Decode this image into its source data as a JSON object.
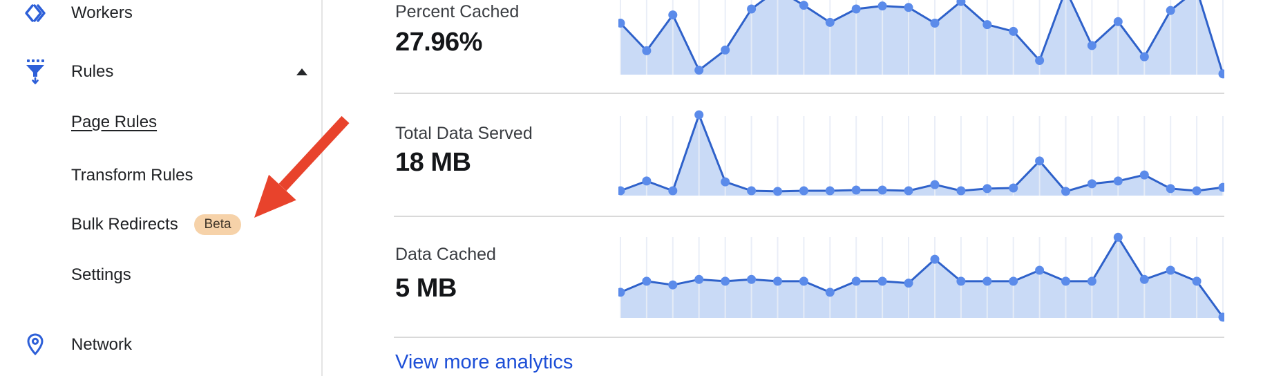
{
  "sidebar": {
    "items": [
      {
        "label": "Workers",
        "icon": "workers-icon"
      },
      {
        "label": "Rules",
        "icon": "rules-icon",
        "expanded": true
      },
      {
        "label": "Page Rules",
        "child": true,
        "underlined": true,
        "active": true
      },
      {
        "label": "Transform Rules",
        "child": true
      },
      {
        "label": "Bulk Redirects",
        "child": true,
        "badge": "Beta"
      },
      {
        "label": "Settings",
        "child": true
      },
      {
        "label": "Network",
        "icon": "location-pin-icon"
      }
    ]
  },
  "analytics": {
    "link_label": "View more analytics"
  },
  "annotation": {
    "type": "red-arrow",
    "points_at": "Bulk Redirects Beta badge",
    "color": "#e8432c"
  },
  "colors": {
    "icon_blue": "#2d5fd8",
    "link_blue": "#1d4fd7",
    "chart_line": "#2e61ca",
    "chart_dot": "#5b8bea",
    "chart_fill": "#c9daf6",
    "chart_grid": "#e8edf7",
    "beta_badge_bg": "#f6d2a9",
    "beta_badge_text": "#3f3529",
    "divider": "#d9d9d9",
    "arrow_red": "#e8432c"
  },
  "chart_data": [
    {
      "type": "area",
      "title": "Percent Cached",
      "display_value": "27.96%",
      "unit": "%",
      "x": "time (24 unlabeled buckets)",
      "x_tick_labels": [],
      "legend": "none",
      "grid": "vertical-only",
      "ylim": [
        0,
        100
      ],
      "note": "values are % of visible plot height; values over 100 are peaks clipped by the cropped viewport top",
      "values": [
        69,
        32,
        80,
        6,
        33,
        88,
        114,
        93,
        70,
        88,
        92,
        90,
        69,
        98,
        67,
        58,
        19,
        114,
        39,
        71,
        24,
        86,
        114,
        1
      ]
    },
    {
      "type": "area",
      "title": "Total Data Served",
      "display_value": "18 MB",
      "unit": "MB",
      "x": "time (24 unlabeled buckets)",
      "x_tick_labels": [],
      "legend": "none",
      "grid": "vertical-only",
      "ylim": [
        0,
        5.9
      ],
      "values": [
        0.3,
        0.9,
        0.3,
        5.0,
        0.85,
        0.3,
        0.26,
        0.3,
        0.3,
        0.34,
        0.34,
        0.3,
        0.68,
        0.3,
        0.43,
        0.47,
        2.14,
        0.26,
        0.73,
        0.9,
        1.28,
        0.43,
        0.3,
        0.51
      ]
    },
    {
      "type": "area",
      "title": "Data Cached",
      "display_value": "5 MB",
      "unit": "MB",
      "x": "time (24 unlabeled buckets)",
      "x_tick_labels": [],
      "legend": "none",
      "grid": "vertical-only",
      "ylim": [
        0,
        0.49
      ],
      "values": [
        0.14,
        0.2,
        0.18,
        0.21,
        0.2,
        0.21,
        0.2,
        0.2,
        0.14,
        0.2,
        0.2,
        0.19,
        0.32,
        0.2,
        0.2,
        0.2,
        0.26,
        0.2,
        0.2,
        0.44,
        0.21,
        0.26,
        0.2,
        0.004
      ]
    }
  ]
}
